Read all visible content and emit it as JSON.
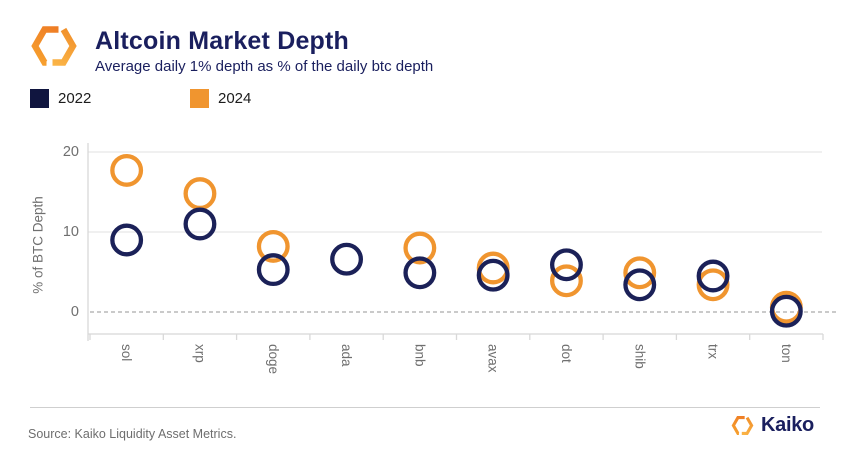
{
  "header": {
    "title": "Altcoin Market Depth",
    "subtitle": "Average daily 1% depth as % of the daily btc depth"
  },
  "legend": {
    "items": [
      {
        "label": "2022",
        "color": "#10153F"
      },
      {
        "label": "2024",
        "color": "#F0952F"
      }
    ]
  },
  "chart_data": {
    "type": "scatter",
    "title": "Altcoin Market Depth",
    "subtitle": "Average daily 1% depth as % of the daily btc depth",
    "marker": "open-circle",
    "categories": [
      "sol",
      "xrp",
      "doge",
      "ada",
      "bnb",
      "avax",
      "dot",
      "shib",
      "trx",
      "ton"
    ],
    "series": [
      {
        "name": "2024",
        "color": "#F0952F",
        "values": [
          17.7,
          14.8,
          8.2,
          null,
          8.0,
          5.5,
          3.9,
          4.9,
          3.4,
          0.6
        ]
      },
      {
        "name": "2022",
        "color": "#1B2158",
        "values": [
          9.0,
          11.0,
          5.3,
          6.6,
          4.9,
          4.6,
          5.9,
          3.4,
          4.5,
          0.1
        ]
      }
    ],
    "xlabel": "",
    "ylabel": "% of BTC Depth",
    "yticks": [
      0,
      10,
      20
    ],
    "ylim": [
      -2.8,
      21
    ],
    "grid": "horizontal-light",
    "zero_line": "dashed",
    "legend_position": "top-left-outside",
    "tick_label_color": "#6f6f6f",
    "grid_color": "#e6e6e6"
  },
  "footer": {
    "source": "Source: Kaiko Liquidity Asset Metrics.",
    "brand": "Kaiko"
  }
}
